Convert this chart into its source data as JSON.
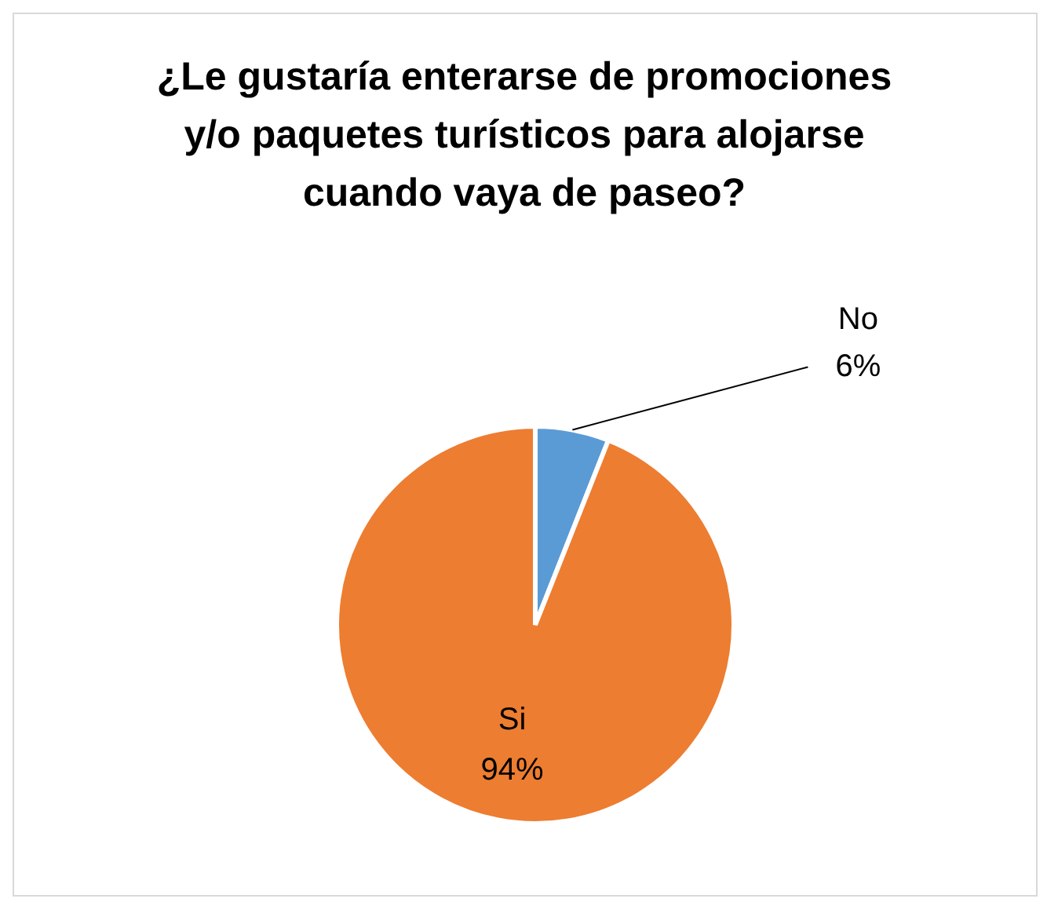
{
  "chart_data": {
    "type": "pie",
    "title": "¿Le gustaría enterarse de promociones y/o paquetes turísticos para alojarse cuando vaya de paseo?",
    "categories": [
      "No",
      "Si"
    ],
    "values": [
      6,
      94
    ],
    "value_labels": [
      "6%",
      "94%"
    ],
    "colors": [
      "#5b9bd5",
      "#ed7d31"
    ],
    "legend": false
  }
}
